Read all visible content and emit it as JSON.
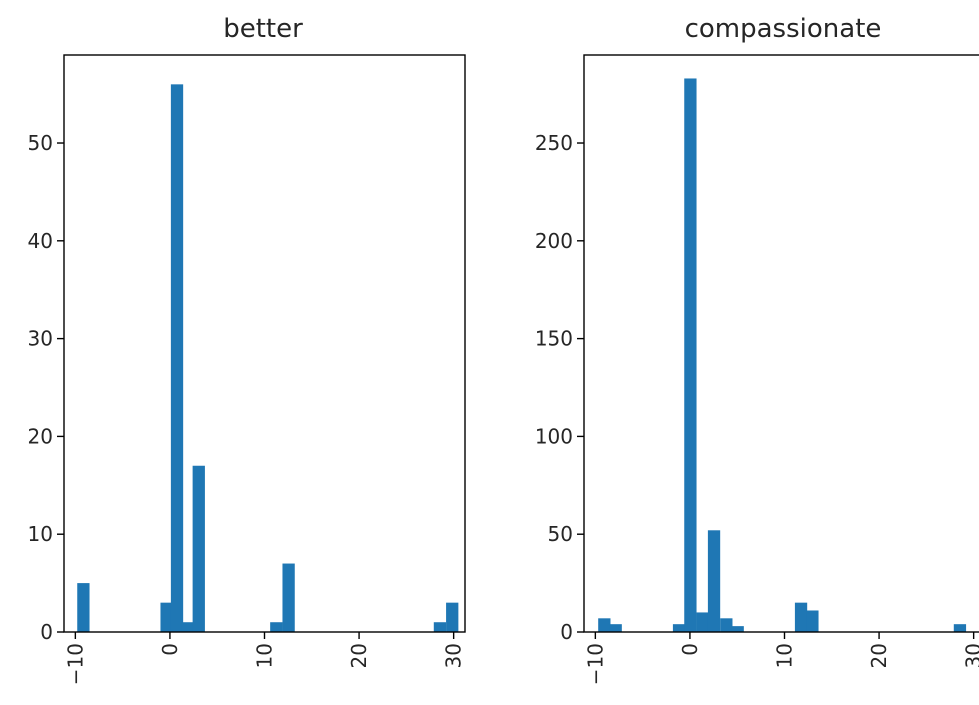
{
  "colors": {
    "bar": "#1f77b4",
    "frame": "#000000",
    "text": "#262626"
  },
  "chart_data": [
    {
      "type": "bar",
      "title": "better",
      "xlabel": "",
      "ylabel": "",
      "xlim": [
        -11.2,
        31.2
      ],
      "ylim": [
        0,
        59
      ],
      "xticks": [
        -10,
        0,
        10,
        20,
        30
      ],
      "xtick_labels": [
        "−10",
        "0",
        "10",
        "20",
        "30"
      ],
      "yticks": [
        0,
        10,
        20,
        30,
        40,
        50
      ],
      "ytick_labels": [
        "0",
        "10",
        "20",
        "30",
        "40",
        "50"
      ],
      "grid": false,
      "legend": "none",
      "bin_width": 1.3,
      "bins": [
        {
          "x0": -9.8,
          "count": 5
        },
        {
          "x0": -1.0,
          "count": 3
        },
        {
          "x0": 0.1,
          "count": 56
        },
        {
          "x0": 1.2,
          "count": 1
        },
        {
          "x0": 2.4,
          "count": 17
        },
        {
          "x0": 10.6,
          "count": 1
        },
        {
          "x0": 11.9,
          "count": 7
        },
        {
          "x0": 27.9,
          "count": 1
        },
        {
          "x0": 29.2,
          "count": 3
        }
      ]
    },
    {
      "type": "bar",
      "title": "compassionate",
      "xlabel": "",
      "ylabel": "",
      "xlim": [
        -11.2,
        31.2
      ],
      "ylim": [
        0,
        295
      ],
      "xticks": [
        -10,
        0,
        10,
        20,
        30
      ],
      "xtick_labels": [
        "−10",
        "0",
        "10",
        "20",
        "30"
      ],
      "yticks": [
        0,
        50,
        100,
        150,
        200,
        250
      ],
      "ytick_labels": [
        "0",
        "50",
        "100",
        "150",
        "200",
        "250"
      ],
      "grid": false,
      "legend": "none",
      "bin_width": 1.3,
      "bins": [
        {
          "x0": -9.7,
          "count": 7
        },
        {
          "x0": -8.5,
          "count": 4
        },
        {
          "x0": -1.8,
          "count": 4
        },
        {
          "x0": -0.6,
          "count": 283
        },
        {
          "x0": 0.7,
          "count": 10
        },
        {
          "x0": 1.9,
          "count": 52
        },
        {
          "x0": 3.2,
          "count": 7
        },
        {
          "x0": 4.4,
          "count": 3
        },
        {
          "x0": 11.1,
          "count": 15
        },
        {
          "x0": 12.3,
          "count": 11
        },
        {
          "x0": 27.9,
          "count": 4
        }
      ]
    }
  ]
}
